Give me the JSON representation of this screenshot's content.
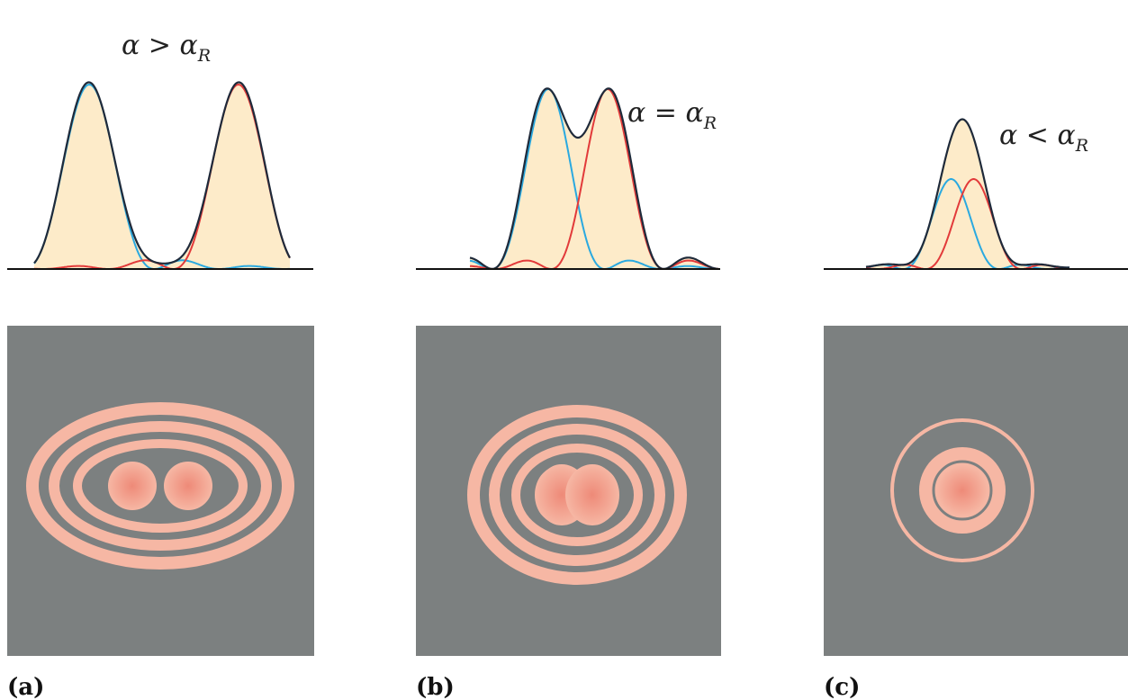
{
  "panels": [
    {
      "id": "a",
      "relation": "α > α",
      "subscript": "R",
      "caption": "(a)",
      "separation": 1.8,
      "profile_peak": 1.0
    },
    {
      "id": "b",
      "relation": "α = α",
      "subscript": "R",
      "caption": "(b)",
      "separation": 1.0,
      "profile_peak": 1.0
    },
    {
      "id": "c",
      "relation": "α < α",
      "subscript": "R",
      "caption": "(c)",
      "separation": 0.5,
      "profile_peak": 1.0
    }
  ],
  "colors": {
    "sum_curve": "#1f2a3a",
    "left_source": "#2aa9e0",
    "right_source": "#e23a3a",
    "fill": "#fdebc9",
    "baseline": "#111111",
    "image_background": "#7c8080",
    "ring_light": "#f6b7a4",
    "ring_center": "#ee8a78"
  }
}
